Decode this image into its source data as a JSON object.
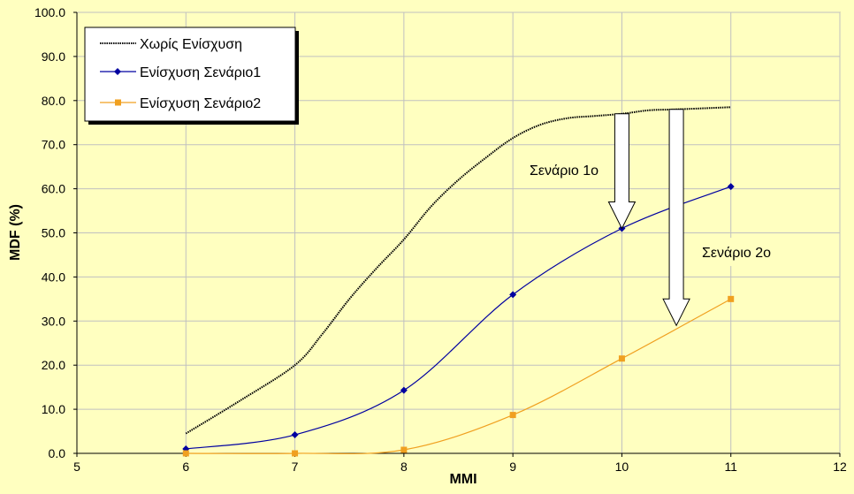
{
  "chart_data": {
    "type": "line",
    "xlabel": "MMI",
    "ylabel": "MDF (%)",
    "xlim": [
      5,
      12
    ],
    "ylim": [
      0,
      100
    ],
    "x_ticks": [
      "5",
      "6",
      "7",
      "8",
      "9",
      "10",
      "11",
      "12"
    ],
    "y_ticks": [
      "0.0",
      "10.0",
      "20.0",
      "30.0",
      "40.0",
      "50.0",
      "60.0",
      "70.0",
      "80.0",
      "90.0",
      "100.0"
    ],
    "grid": true,
    "legend_position": "top-left",
    "series": [
      {
        "name": "Χωρίς Ενίσχυση",
        "color": "#000000",
        "marker": "none",
        "style": "dotted",
        "x": [
          6,
          6.5,
          7,
          7.25,
          7.5,
          7.75,
          8,
          8.25,
          8.5,
          8.75,
          9,
          9.25,
          9.5,
          9.75,
          10,
          10.25,
          10.5,
          11
        ],
        "y": [
          4.5,
          12,
          20,
          27,
          35,
          42,
          48.5,
          56,
          62,
          67,
          71.5,
          74.5,
          76,
          76.5,
          77,
          77.8,
          78,
          78.5
        ]
      },
      {
        "name": "Ενίσχυση Σενάριο1",
        "color": "#0000a0",
        "marker": "diamond",
        "style": "solid",
        "x": [
          6,
          7,
          8,
          9,
          10,
          11
        ],
        "y": [
          1,
          4.2,
          14.3,
          36,
          51,
          60.5
        ]
      },
      {
        "name": "Ενίσχυση Σενάριο2",
        "color": "#f0a020",
        "marker": "square",
        "style": "solid",
        "x": [
          6,
          7,
          8,
          9,
          10,
          11
        ],
        "y": [
          0,
          0,
          0.8,
          8.7,
          21.5,
          35
        ]
      }
    ],
    "annotations": [
      {
        "text": "Σενάριο 1ο",
        "arrow_x": 10,
        "arrow_from": 77,
        "arrow_to": 51
      },
      {
        "text": "Σενάριο 2ο",
        "arrow_x": 10.5,
        "arrow_from": 78,
        "arrow_to": 29
      }
    ]
  }
}
